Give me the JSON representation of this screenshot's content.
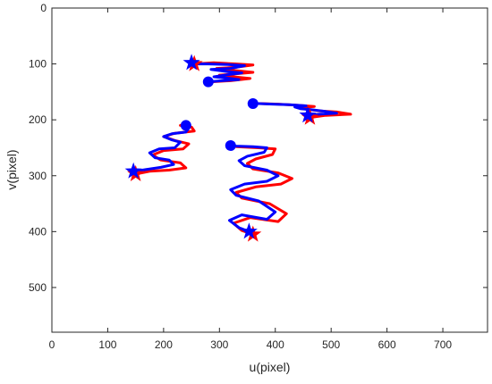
{
  "chart_data": {
    "type": "scatter",
    "title": "",
    "xlabel": "u(pixel)",
    "ylabel": "v(pixel)",
    "xlim": [
      0,
      780
    ],
    "ylim": [
      0,
      580
    ],
    "y_axis_inverted": true,
    "x_ticks": [
      0,
      100,
      200,
      300,
      400,
      500,
      600,
      700
    ],
    "y_ticks": [
      0,
      100,
      200,
      300,
      400,
      500
    ],
    "grid": false,
    "legend": "none",
    "colors": {
      "red": "#ff0000",
      "blue": "#0000ff"
    },
    "series": [
      {
        "color": "red",
        "style": "line",
        "trajectories": [
          [
            [
              255,
              100
            ],
            [
              290,
              98
            ],
            [
              330,
              100
            ],
            [
              360,
              102
            ],
            [
              330,
              106
            ],
            [
              295,
              108
            ],
            [
              330,
              112
            ],
            [
              360,
              115
            ],
            [
              325,
              118
            ],
            [
              300,
              120
            ],
            [
              335,
              124
            ],
            [
              355,
              126
            ],
            [
              320,
              130
            ],
            [
              285,
              132
            ]
          ],
          [
            [
              360,
              405
            ],
            [
              340,
              398
            ],
            [
              325,
              385
            ],
            [
              355,
              375
            ],
            [
              405,
              382
            ],
            [
              420,
              368
            ],
            [
              390,
              350
            ],
            [
              340,
              340
            ],
            [
              330,
              330
            ],
            [
              365,
              320
            ],
            [
              410,
              315
            ],
            [
              430,
              305
            ],
            [
              405,
              295
            ],
            [
              360,
              288
            ],
            [
              350,
              278
            ],
            [
              365,
              270
            ],
            [
              395,
              262
            ],
            [
              400,
              252
            ],
            [
              370,
              250
            ],
            [
              330,
              248
            ],
            [
              320,
              246
            ]
          ],
          [
            [
              150,
              297
            ],
            [
              175,
              292
            ],
            [
              210,
              290
            ],
            [
              240,
              286
            ],
            [
              230,
              277
            ],
            [
              195,
              272
            ],
            [
              180,
              263
            ],
            [
              200,
              255
            ],
            [
              235,
              252
            ],
            [
              245,
              243
            ],
            [
              220,
              237
            ],
            [
              200,
              230
            ],
            [
              220,
              224
            ],
            [
              255,
              220
            ],
            [
              250,
              213
            ],
            [
              230,
              210
            ]
          ],
          [
            [
              462,
              196
            ],
            [
              490,
              192
            ],
            [
              535,
              190
            ],
            [
              510,
              186
            ],
            [
              480,
              184
            ],
            [
              455,
              181
            ],
            [
              445,
              178
            ],
            [
              470,
              176
            ],
            [
              440,
              174
            ],
            [
              405,
              172
            ],
            [
              375,
              171
            ],
            [
              360,
              171
            ]
          ]
        ]
      },
      {
        "color": "blue",
        "style": "line",
        "trajectories": [
          [
            [
              252,
              100
            ],
            [
              280,
              100
            ],
            [
              315,
              101
            ],
            [
              345,
              103
            ],
            [
              320,
              108
            ],
            [
              285,
              110
            ],
            [
              315,
              114
            ],
            [
              340,
              116
            ],
            [
              310,
              120
            ],
            [
              290,
              123
            ],
            [
              320,
              126
            ],
            [
              335,
              128
            ],
            [
              305,
              130
            ],
            [
              280,
              132
            ]
          ],
          [
            [
              353,
              400
            ],
            [
              335,
              393
            ],
            [
              318,
              380
            ],
            [
              340,
              370
            ],
            [
              385,
              378
            ],
            [
              400,
              365
            ],
            [
              370,
              345
            ],
            [
              330,
              335
            ],
            [
              320,
              325
            ],
            [
              345,
              315
            ],
            [
              385,
              310
            ],
            [
              405,
              300
            ],
            [
              385,
              290
            ],
            [
              345,
              282
            ],
            [
              335,
              273
            ],
            [
              350,
              265
            ],
            [
              380,
              258
            ],
            [
              385,
              250
            ],
            [
              360,
              248
            ],
            [
              330,
              247
            ],
            [
              320,
              246
            ]
          ],
          [
            [
              148,
              292
            ],
            [
              168,
              289
            ],
            [
              195,
              285
            ],
            [
              218,
              280
            ],
            [
              210,
              272
            ],
            [
              185,
              268
            ],
            [
              175,
              259
            ],
            [
              192,
              252
            ],
            [
              220,
              250
            ],
            [
              230,
              240
            ],
            [
              215,
              236
            ],
            [
              200,
              230
            ],
            [
              215,
              225
            ],
            [
              240,
              222
            ],
            [
              245,
              215
            ],
            [
              240,
              210
            ]
          ],
          [
            [
              458,
              192
            ],
            [
              478,
              190
            ],
            [
              510,
              188
            ],
            [
              490,
              185
            ],
            [
              465,
              182
            ],
            [
              445,
              180
            ],
            [
              435,
              177
            ],
            [
              455,
              175
            ],
            [
              425,
              173
            ],
            [
              395,
              172
            ],
            [
              370,
              171
            ],
            [
              360,
              171
            ]
          ]
        ]
      }
    ],
    "markers": [
      {
        "color": "red",
        "symbol": "star",
        "points": [
          [
            255,
            100
          ],
          [
            360,
            405
          ],
          [
            150,
            297
          ],
          [
            462,
            196
          ]
        ]
      },
      {
        "color": "blue",
        "symbol": "star",
        "points": [
          [
            250,
            98
          ],
          [
            353,
            400
          ],
          [
            146,
            292
          ],
          [
            458,
            192
          ]
        ]
      },
      {
        "color": "blue",
        "symbol": "circle",
        "points": [
          [
            280,
            132
          ],
          [
            320,
            246
          ],
          [
            240,
            210
          ],
          [
            360,
            171
          ]
        ]
      }
    ]
  }
}
